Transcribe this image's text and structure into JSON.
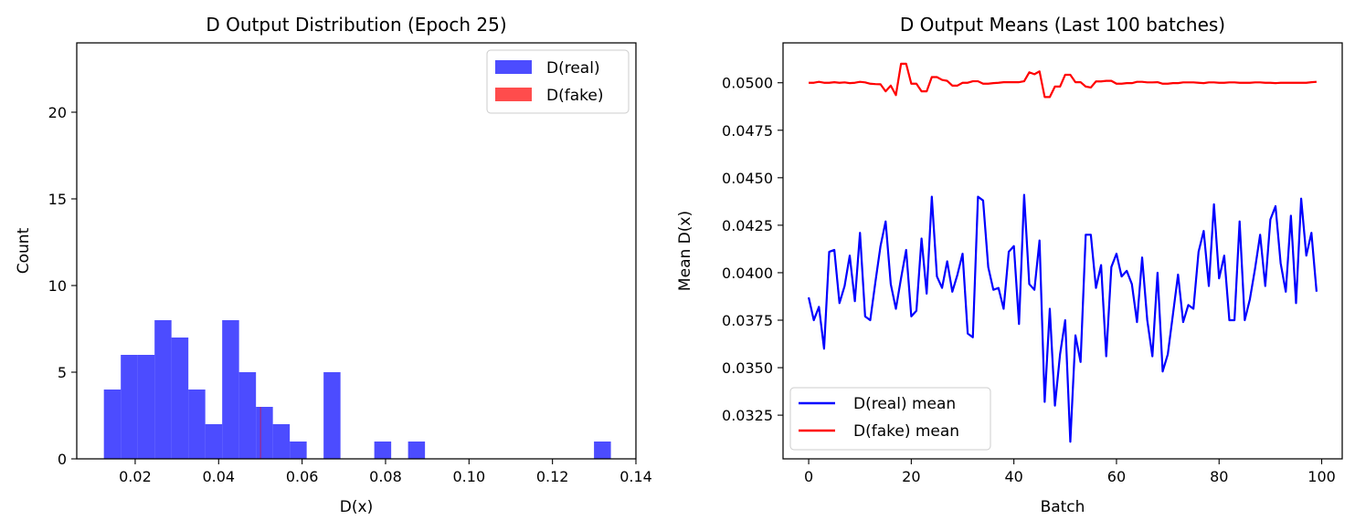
{
  "chart_data": [
    {
      "type": "histogram",
      "title": "D Output Distribution (Epoch 25)",
      "xlabel": "D(x)",
      "ylabel": "Count",
      "xlim": [
        0.006,
        0.14
      ],
      "ylim": [
        0,
        24
      ],
      "xticks": [
        0.02,
        0.04,
        0.06,
        0.08,
        0.1,
        0.12,
        0.14
      ],
      "xtick_labels": [
        "0.02",
        "0.04",
        "0.06",
        "0.08",
        "0.10",
        "0.12",
        "0.14"
      ],
      "yticks": [
        0,
        5,
        10,
        15,
        20
      ],
      "ytick_labels": [
        "0",
        "5",
        "10",
        "15",
        "20"
      ],
      "legend_position": "top-right",
      "series": [
        {
          "name": "D(real)",
          "color": "#0000ff",
          "opacity": 0.7,
          "bin_width": 0.00405,
          "bin_starts": [
            0.0125,
            0.01655,
            0.0206,
            0.02465,
            0.0287,
            0.03275,
            0.0368,
            0.04085,
            0.0449,
            0.04895,
            0.053,
            0.05705,
            0.0611,
            0.06515,
            0.0692,
            0.07325,
            0.0773,
            0.08135,
            0.0854,
            0.08945,
            0.0935,
            0.09755,
            0.1016,
            0.10565,
            0.1097,
            0.11375,
            0.1178,
            0.12185,
            0.1259,
            0.12995
          ],
          "counts": [
            4,
            6,
            6,
            8,
            7,
            4,
            2,
            8,
            5,
            3,
            2,
            1,
            0,
            5,
            0,
            0,
            1,
            0,
            1,
            0,
            0,
            0,
            0,
            0,
            0,
            0,
            0,
            0,
            0,
            1
          ]
        },
        {
          "name": "D(fake)",
          "color": "#ff0000",
          "opacity": 0.7,
          "bin_width": 0.0001,
          "bin_starts": [
            0.04995
          ],
          "counts": [
            3
          ]
        }
      ]
    },
    {
      "type": "line",
      "title": "D Output Means (Last 100 batches)",
      "xlabel": "Batch",
      "ylabel": "Mean D(x)",
      "xlim": [
        -5,
        104
      ],
      "ylim": [
        0.0302,
        0.0521
      ],
      "xticks": [
        0,
        20,
        40,
        60,
        80,
        100
      ],
      "xtick_labels": [
        "0",
        "20",
        "40",
        "60",
        "80",
        "100"
      ],
      "yticks": [
        0.0325,
        0.035,
        0.0375,
        0.04,
        0.0425,
        0.045,
        0.0475,
        0.05
      ],
      "ytick_labels": [
        "0.0325",
        "0.0350",
        "0.0375",
        "0.0400",
        "0.0425",
        "0.0450",
        "0.0475",
        "0.0500"
      ],
      "legend_position": "bottom-left",
      "series": [
        {
          "name": "D(real) mean",
          "color": "#0000ff",
          "x": [
            0,
            1,
            2,
            3,
            4,
            5,
            6,
            7,
            8,
            9,
            10,
            11,
            12,
            13,
            14,
            15,
            16,
            17,
            18,
            19,
            20,
            21,
            22,
            23,
            24,
            25,
            26,
            27,
            28,
            29,
            30,
            31,
            32,
            33,
            34,
            35,
            36,
            37,
            38,
            39,
            40,
            41,
            42,
            43,
            44,
            45,
            46,
            47,
            48,
            49,
            50,
            51,
            52,
            53,
            54,
            55,
            56,
            57,
            58,
            59,
            60,
            61,
            62,
            63,
            64,
            65,
            66,
            67,
            68,
            69,
            70,
            71,
            72,
            73,
            74,
            75,
            76,
            77,
            78,
            79,
            80,
            81,
            82,
            83,
            84,
            85,
            86,
            87,
            88,
            89,
            90,
            91,
            92,
            93,
            94,
            95,
            96,
            97,
            98,
            99
          ],
          "y": [
            0.0387,
            0.0375,
            0.0382,
            0.036,
            0.0411,
            0.0412,
            0.0384,
            0.0393,
            0.0409,
            0.0385,
            0.0421,
            0.0377,
            0.0375,
            0.0395,
            0.0414,
            0.0427,
            0.0394,
            0.0381,
            0.0397,
            0.0412,
            0.0377,
            0.038,
            0.0418,
            0.0389,
            0.044,
            0.0398,
            0.0392,
            0.0406,
            0.039,
            0.0399,
            0.041,
            0.0368,
            0.0366,
            0.044,
            0.0438,
            0.0403,
            0.0391,
            0.0392,
            0.0381,
            0.0411,
            0.0414,
            0.0373,
            0.0441,
            0.0394,
            0.0391,
            0.0417,
            0.0332,
            0.0381,
            0.033,
            0.0357,
            0.0375,
            0.0311,
            0.0367,
            0.0353,
            0.042,
            0.042,
            0.0392,
            0.0404,
            0.0356,
            0.0403,
            0.041,
            0.0398,
            0.0401,
            0.0394,
            0.0374,
            0.0408,
            0.0375,
            0.0356,
            0.04,
            0.0348,
            0.0357,
            0.0378,
            0.0399,
            0.0374,
            0.0383,
            0.0381,
            0.0411,
            0.0422,
            0.0393,
            0.0436,
            0.0397,
            0.0409,
            0.0375,
            0.0375,
            0.0427,
            0.0375,
            0.0386,
            0.0402,
            0.042,
            0.0393,
            0.0428,
            0.0435,
            0.0405,
            0.039,
            0.043,
            0.0384,
            0.0439,
            0.0409,
            0.0421,
            0.039
          ]
        },
        {
          "name": "D(fake) mean",
          "color": "#ff0000",
          "x": [
            0,
            1,
            2,
            3,
            4,
            5,
            6,
            7,
            8,
            9,
            10,
            11,
            12,
            13,
            14,
            15,
            16,
            17,
            18,
            19,
            20,
            21,
            22,
            23,
            24,
            25,
            26,
            27,
            28,
            29,
            30,
            31,
            32,
            33,
            34,
            35,
            36,
            37,
            38,
            39,
            40,
            41,
            42,
            43,
            44,
            45,
            46,
            47,
            48,
            49,
            50,
            51,
            52,
            53,
            54,
            55,
            56,
            57,
            58,
            59,
            60,
            61,
            62,
            63,
            64,
            65,
            66,
            67,
            68,
            69,
            70,
            71,
            72,
            73,
            74,
            75,
            76,
            77,
            78,
            79,
            80,
            81,
            82,
            83,
            84,
            85,
            86,
            87,
            88,
            89,
            90,
            91,
            92,
            93,
            94,
            95,
            96,
            97,
            98,
            99
          ],
          "y": [
            0.05,
            0.05,
            0.05005,
            0.05,
            0.05,
            0.05003,
            0.05,
            0.05002,
            0.04998,
            0.05,
            0.05005,
            0.05002,
            0.04995,
            0.04993,
            0.04992,
            0.04955,
            0.04985,
            0.04935,
            0.051,
            0.051,
            0.04995,
            0.04995,
            0.04955,
            0.04955,
            0.0503,
            0.0503,
            0.05015,
            0.0501,
            0.04985,
            0.04985,
            0.05,
            0.05,
            0.05008,
            0.05008,
            0.04995,
            0.04995,
            0.04998,
            0.05,
            0.05003,
            0.05003,
            0.05003,
            0.05003,
            0.05008,
            0.05055,
            0.05045,
            0.0506,
            0.04925,
            0.04925,
            0.0498,
            0.0498,
            0.05042,
            0.05042,
            0.05003,
            0.05003,
            0.0498,
            0.04975,
            0.05007,
            0.05007,
            0.0501,
            0.0501,
            0.04995,
            0.04995,
            0.04998,
            0.04998,
            0.05005,
            0.05005,
            0.05002,
            0.05002,
            0.05003,
            0.04995,
            0.04995,
            0.04998,
            0.04998,
            0.05002,
            0.05002,
            0.05002,
            0.05,
            0.04998,
            0.05002,
            0.05002,
            0.05,
            0.05,
            0.05002,
            0.05002,
            0.05,
            0.05,
            0.05,
            0.05002,
            0.05002,
            0.05,
            0.05,
            0.04998,
            0.05,
            0.05,
            0.05,
            0.05,
            0.05,
            0.05,
            0.05003,
            0.05005
          ]
        }
      ]
    }
  ]
}
